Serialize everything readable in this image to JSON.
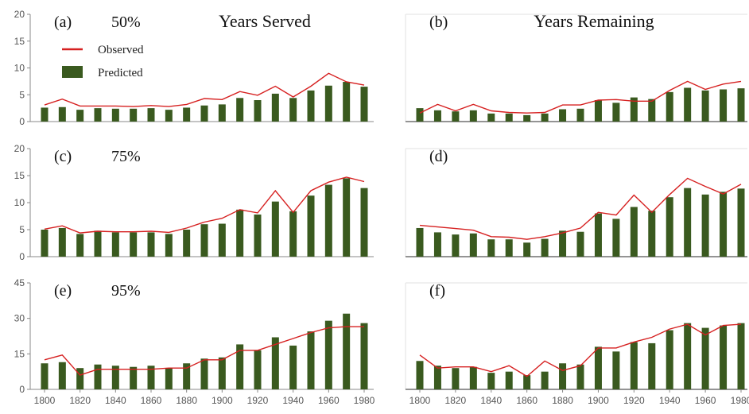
{
  "colors": {
    "observed": "#d62020",
    "predicted": "#3a5a1f",
    "axis": "#888888"
  },
  "legend": {
    "observed": "Observed",
    "predicted": "Predicted"
  },
  "chart_data": [
    {
      "type": "bar",
      "panel": "(a)",
      "percent_label": "50%",
      "title": "Years Served",
      "x": [
        1800,
        1810,
        1820,
        1830,
        1840,
        1850,
        1860,
        1870,
        1880,
        1890,
        1900,
        1910,
        1920,
        1930,
        1940,
        1950,
        1960,
        1970,
        1980
      ],
      "predicted": [
        2.6,
        2.7,
        2.2,
        2.5,
        2.4,
        2.4,
        2.5,
        2.2,
        2.6,
        3.0,
        3.2,
        4.4,
        4.0,
        5.2,
        4.4,
        5.8,
        6.7,
        7.4,
        6.5
      ],
      "observed": [
        3.1,
        4.2,
        2.9,
        2.9,
        2.9,
        2.8,
        3.0,
        2.8,
        3.2,
        4.3,
        4.1,
        5.6,
        4.9,
        6.6,
        4.6,
        6.6,
        9.0,
        7.4,
        6.8
      ],
      "ylim": [
        0,
        20
      ],
      "yticks": [
        0,
        5,
        10,
        15,
        20
      ]
    },
    {
      "type": "bar",
      "panel": "(b)",
      "percent_label": "",
      "title": "Years Remaining",
      "x": [
        1800,
        1810,
        1820,
        1830,
        1840,
        1850,
        1860,
        1870,
        1880,
        1890,
        1900,
        1910,
        1920,
        1930,
        1940,
        1950,
        1960,
        1970,
        1980
      ],
      "predicted": [
        2.5,
        2.1,
        1.9,
        2.1,
        1.5,
        1.5,
        1.2,
        1.5,
        2.3,
        2.4,
        4.0,
        3.5,
        4.5,
        4.2,
        5.5,
        6.3,
        5.8,
        6.0,
        6.2
      ],
      "observed": [
        1.6,
        3.2,
        2.0,
        3.2,
        2.0,
        1.7,
        1.6,
        1.7,
        3.1,
        3.1,
        4.0,
        4.1,
        3.8,
        3.8,
        5.8,
        7.5,
        6.0,
        7.0,
        7.5
      ],
      "ylim": [
        0,
        20
      ],
      "yticks": []
    },
    {
      "type": "bar",
      "panel": "(c)",
      "percent_label": "75%",
      "title": "",
      "x": [
        1800,
        1810,
        1820,
        1830,
        1840,
        1850,
        1860,
        1870,
        1880,
        1890,
        1900,
        1910,
        1920,
        1930,
        1940,
        1950,
        1960,
        1970,
        1980
      ],
      "predicted": [
        5.0,
        5.3,
        4.2,
        4.8,
        4.5,
        4.5,
        4.5,
        4.2,
        5.0,
        6.0,
        6.1,
        8.7,
        7.8,
        10.2,
        8.4,
        11.3,
        13.3,
        14.5,
        12.7
      ],
      "observed": [
        5.1,
        5.7,
        4.4,
        4.7,
        4.6,
        4.6,
        4.7,
        4.5,
        5.3,
        6.4,
        7.1,
        8.7,
        8.1,
        12.2,
        8.2,
        12.2,
        13.8,
        14.7,
        13.9
      ],
      "ylim": [
        0,
        20
      ],
      "yticks": [
        0,
        5,
        10,
        15,
        20
      ]
    },
    {
      "type": "bar",
      "panel": "(d)",
      "percent_label": "",
      "title": "",
      "x": [
        1800,
        1810,
        1820,
        1830,
        1840,
        1850,
        1860,
        1870,
        1880,
        1890,
        1900,
        1910,
        1920,
        1930,
        1940,
        1950,
        1960,
        1970,
        1980
      ],
      "predicted": [
        5.3,
        4.5,
        4.1,
        4.3,
        3.2,
        3.2,
        2.6,
        3.3,
        4.8,
        4.6,
        8.0,
        7.0,
        9.2,
        8.5,
        11.0,
        12.7,
        11.5,
        12.0,
        12.6
      ],
      "observed": [
        5.8,
        5.5,
        5.2,
        4.9,
        3.7,
        3.6,
        3.2,
        3.7,
        4.4,
        5.3,
        8.2,
        7.7,
        11.4,
        8.2,
        11.5,
        14.5,
        13.0,
        11.6,
        13.4
      ],
      "ylim": [
        0,
        20
      ],
      "yticks": []
    },
    {
      "type": "bar",
      "panel": "(e)",
      "percent_label": "95%",
      "title": "",
      "x": [
        1800,
        1810,
        1820,
        1830,
        1840,
        1850,
        1860,
        1870,
        1880,
        1890,
        1900,
        1910,
        1920,
        1930,
        1940,
        1950,
        1960,
        1970,
        1980
      ],
      "predicted": [
        11,
        11.5,
        9,
        10.5,
        10,
        9.5,
        10,
        9,
        11,
        13,
        13.5,
        19,
        16.5,
        22,
        18.5,
        24.5,
        29,
        32,
        28
      ],
      "observed": [
        12.5,
        14.5,
        6,
        8.5,
        8.5,
        8.5,
        8.5,
        9,
        9,
        12.5,
        12.5,
        16.5,
        16.5,
        19,
        21.5,
        24,
        26,
        26.5,
        26.5
      ],
      "ylim": [
        0,
        45
      ],
      "yticks": [
        0,
        15,
        30,
        45
      ]
    },
    {
      "type": "bar",
      "panel": "(f)",
      "percent_label": "",
      "title": "",
      "x": [
        1800,
        1810,
        1820,
        1830,
        1840,
        1850,
        1860,
        1870,
        1880,
        1890,
        1900,
        1910,
        1920,
        1930,
        1940,
        1950,
        1960,
        1970,
        1980
      ],
      "predicted": [
        12,
        10,
        9,
        9.5,
        7,
        7.5,
        6,
        7.5,
        11,
        10.5,
        18,
        16,
        20,
        19.5,
        25,
        28,
        26,
        27,
        28
      ],
      "observed": [
        14.5,
        9,
        9.5,
        9.5,
        7.5,
        10,
        5.5,
        12,
        8,
        10,
        17.5,
        17.5,
        20,
        22,
        25.5,
        27.5,
        23,
        27,
        27.5
      ],
      "ylim": [
        0,
        45
      ],
      "yticks": []
    }
  ],
  "x_axis": {
    "tick_labels": [
      "1800",
      "1820",
      "1840",
      "1860",
      "1880",
      "1900",
      "1920",
      "1940",
      "1960",
      "1980"
    ]
  }
}
